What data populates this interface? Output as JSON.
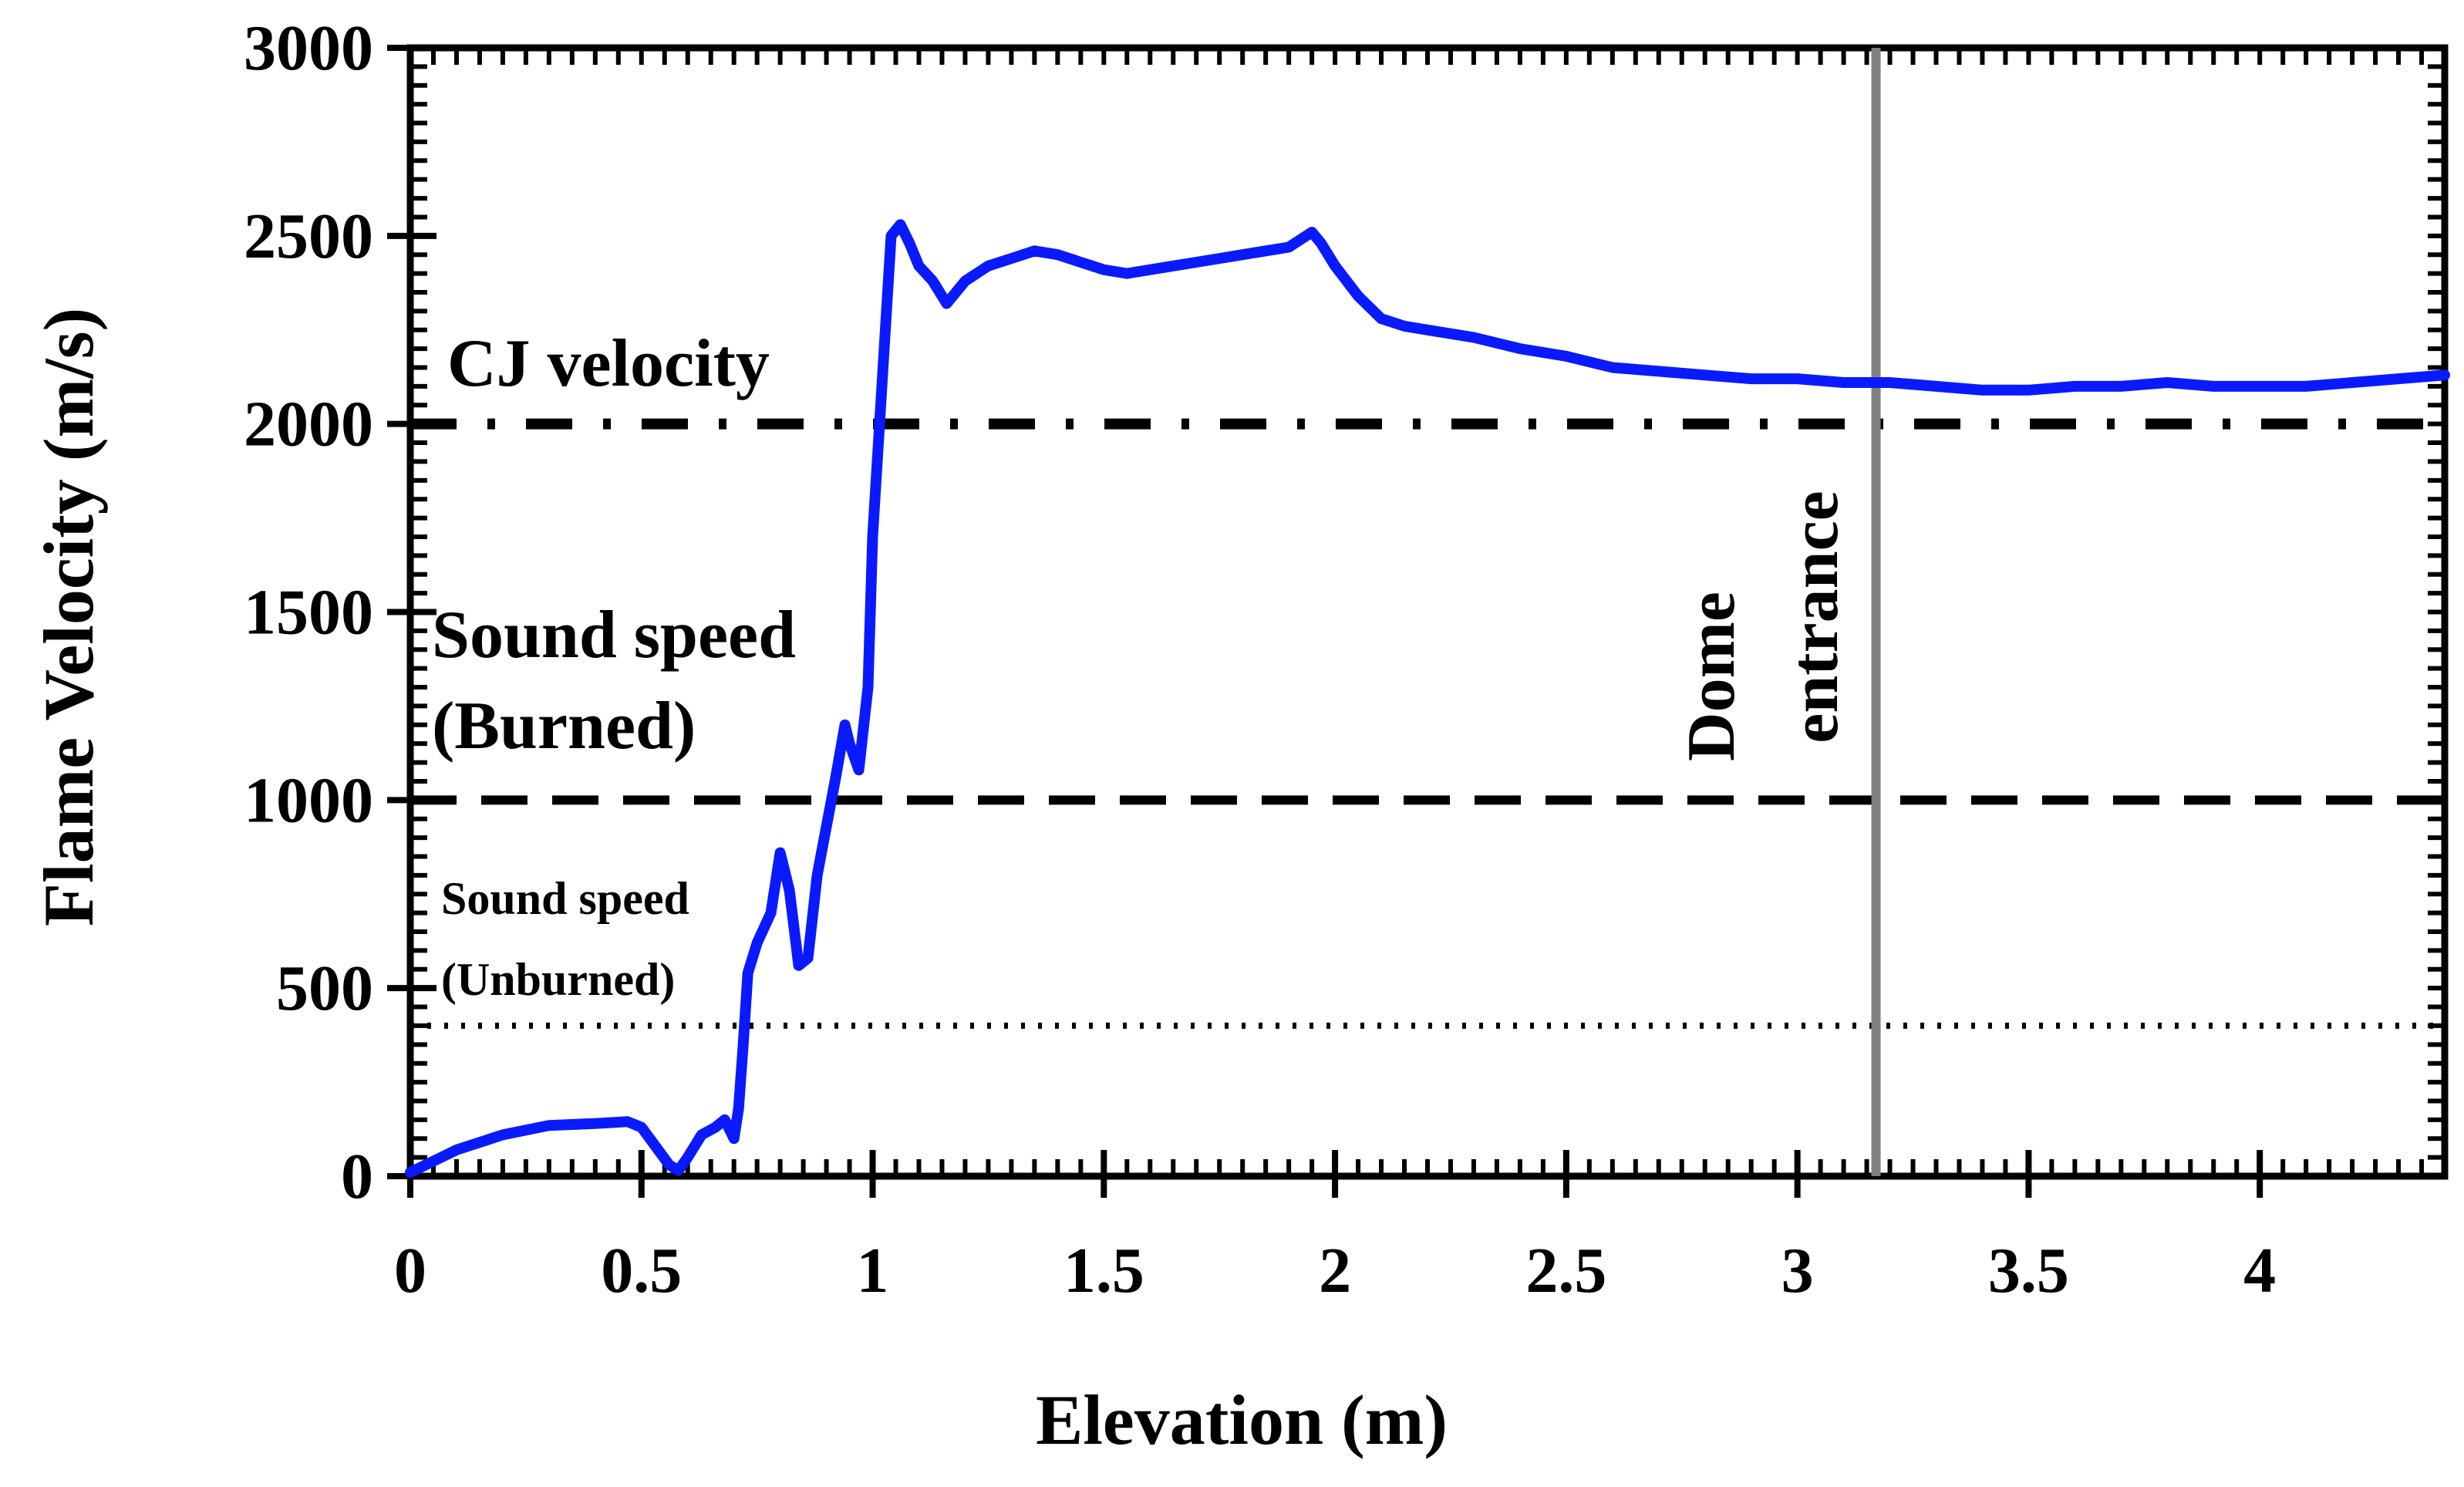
{
  "chart_data": {
    "type": "line",
    "title": "",
    "xlabel": "Elevation (m)",
    "ylabel": "Flame Velocity (m/s)",
    "xlim": [
      0,
      4.4
    ],
    "ylim": [
      0,
      3000
    ],
    "x_ticks": [
      0,
      0.5,
      1,
      1.5,
      2,
      2.5,
      3,
      3.5,
      4
    ],
    "x_tick_labels": [
      "0",
      "0.5",
      "1",
      "1.5",
      "2",
      "2.5",
      "3",
      "3.5",
      "4"
    ],
    "y_ticks": [
      0,
      500,
      1000,
      1500,
      2000,
      2500,
      3000
    ],
    "y_tick_labels": [
      "0",
      "500",
      "1000",
      "1500",
      "2000",
      "2500",
      "3000"
    ],
    "grid": false,
    "series": [
      {
        "name": "Flame velocity",
        "color": "#0a1aff",
        "x": [
          0,
          0.05,
          0.1,
          0.2,
          0.3,
          0.4,
          0.47,
          0.5,
          0.53,
          0.56,
          0.58,
          0.6,
          0.63,
          0.66,
          0.68,
          0.7,
          0.71,
          0.72,
          0.73,
          0.75,
          0.78,
          0.8,
          0.82,
          0.84,
          0.86,
          0.88,
          0.9,
          0.92,
          0.94,
          0.95,
          0.97,
          0.99,
          1.0,
          1.02,
          1.04,
          1.06,
          1.08,
          1.1,
          1.13,
          1.16,
          1.2,
          1.25,
          1.3,
          1.35,
          1.4,
          1.45,
          1.5,
          1.55,
          1.6,
          1.65,
          1.7,
          1.75,
          1.8,
          1.85,
          1.9,
          1.95,
          1.97,
          2.0,
          2.05,
          2.1,
          2.15,
          2.2,
          2.3,
          2.4,
          2.5,
          2.6,
          2.7,
          2.8,
          2.9,
          3.0,
          3.1,
          3.2,
          3.3,
          3.4,
          3.5,
          3.6,
          3.7,
          3.8,
          3.9,
          4.0,
          4.1,
          4.2,
          4.3,
          4.4
        ],
        "y": [
          10,
          40,
          70,
          110,
          135,
          140,
          145,
          130,
          80,
          30,
          15,
          50,
          110,
          130,
          150,
          100,
          180,
          350,
          540,
          620,
          700,
          860,
          760,
          560,
          580,
          800,
          930,
          1060,
          1200,
          1150,
          1080,
          1300,
          1700,
          2100,
          2500,
          2530,
          2480,
          2420,
          2380,
          2320,
          2380,
          2420,
          2440,
          2460,
          2450,
          2430,
          2410,
          2400,
          2410,
          2420,
          2430,
          2440,
          2450,
          2460,
          2470,
          2510,
          2480,
          2420,
          2340,
          2280,
          2260,
          2250,
          2230,
          2200,
          2180,
          2150,
          2140,
          2130,
          2120,
          2120,
          2110,
          2110,
          2100,
          2090,
          2090,
          2100,
          2100,
          2110,
          2100,
          2100,
          2100,
          2110,
          2120,
          2130
        ]
      }
    ],
    "reference_lines": [
      {
        "name": "CJ velocity",
        "y": 2000,
        "style": "dash-dot"
      },
      {
        "name": "Sound speed (Burned)",
        "y": 1000,
        "style": "dashed"
      },
      {
        "name": "Sound speed (Unburned)",
        "y": 400,
        "style": "dotted"
      }
    ],
    "vertical_line": {
      "name": "Dome entrance",
      "x": 3.17,
      "color": "#808080"
    },
    "annotations": {
      "cj": "CJ velocity",
      "burned_line1": "Sound speed",
      "burned_line2": "(Burned)",
      "unburned_line1": "Sound speed",
      "unburned_line2": "(Unburned)",
      "dome_line1": "Dome",
      "dome_line2": "entrance"
    }
  }
}
